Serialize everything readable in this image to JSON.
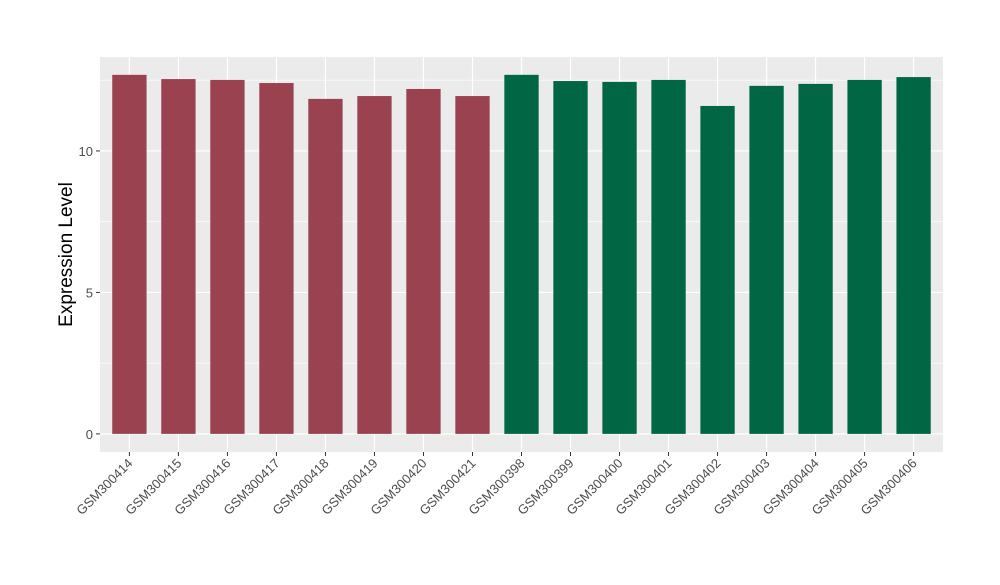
{
  "chart_data": {
    "type": "bar",
    "title": "",
    "xlabel": "",
    "ylabel": "Expression Level",
    "ylim": [
      -0.64,
      13.32
    ],
    "yticks": [
      0,
      5,
      10
    ],
    "grid": true,
    "categories": [
      "GSM300414",
      "GSM300415",
      "GSM300416",
      "GSM300417",
      "GSM300418",
      "GSM300419",
      "GSM300420",
      "GSM300421",
      "GSM300398",
      "GSM300399",
      "GSM300400",
      "GSM300401",
      "GSM300402",
      "GSM300403",
      "GSM300404",
      "GSM300405",
      "GSM300406"
    ],
    "values": [
      12.69,
      12.54,
      12.51,
      12.4,
      11.84,
      11.94,
      12.19,
      11.94,
      12.69,
      12.47,
      12.44,
      12.51,
      11.59,
      12.3,
      12.37,
      12.51,
      12.61
    ],
    "groups": [
      0,
      0,
      0,
      0,
      0,
      0,
      0,
      0,
      1,
      1,
      1,
      1,
      1,
      1,
      1,
      1,
      1
    ],
    "colors": [
      "#9b4250",
      "#006644"
    ]
  }
}
